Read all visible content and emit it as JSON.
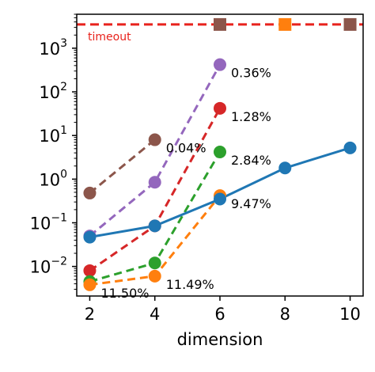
{
  "chart_data": {
    "type": "line",
    "xlabel": "dimension",
    "ylabel": "",
    "x_ticks": [
      2,
      4,
      6,
      8,
      10
    ],
    "xlim": [
      1.6,
      10.4
    ],
    "yscale": "log",
    "ylim": [
      0.0021,
      6000
    ],
    "y_ticks": [
      {
        "value": 0.01,
        "base": "10",
        "exp": "−2"
      },
      {
        "value": 0.1,
        "base": "10",
        "exp": "−1"
      },
      {
        "value": 1,
        "base": "10",
        "exp": "0"
      },
      {
        "value": 10,
        "base": "10",
        "exp": "1"
      },
      {
        "value": 100,
        "base": "10",
        "exp": "2"
      },
      {
        "value": 1000,
        "base": "10",
        "exp": "3"
      }
    ],
    "timeout": {
      "value": 3500,
      "label": "timeout",
      "color": "#e8221c"
    },
    "series": [
      {
        "color": "#8c564b",
        "dashed": true,
        "points": [
          {
            "x": 2,
            "y": 0.48
          },
          {
            "x": 4,
            "y": 8.0
          }
        ],
        "label": {
          "text": "0.04%",
          "x": 4,
          "y": 8.0
        }
      },
      {
        "color": "#9467bd",
        "dashed": true,
        "points": [
          {
            "x": 2,
            "y": 0.05
          },
          {
            "x": 4,
            "y": 0.85
          },
          {
            "x": 6,
            "y": 420
          }
        ],
        "label": {
          "text": "0.36%",
          "x": 6,
          "y": 420
        }
      },
      {
        "color": "#d62728",
        "dashed": true,
        "points": [
          {
            "x": 2,
            "y": 0.008
          },
          {
            "x": 4,
            "y": 0.085
          },
          {
            "x": 6,
            "y": 42
          }
        ],
        "label": {
          "text": "1.28%",
          "x": 6,
          "y": 42
        }
      },
      {
        "color": "#2ca02c",
        "dashed": true,
        "points": [
          {
            "x": 2,
            "y": 0.0045
          },
          {
            "x": 4,
            "y": 0.012
          },
          {
            "x": 6,
            "y": 4.2
          }
        ],
        "label": {
          "text": "2.84%",
          "x": 6,
          "y": 4.2
        }
      },
      {
        "color": "#ff7f0e",
        "dashed": true,
        "points": [
          {
            "x": 2,
            "y": 0.0038
          },
          {
            "x": 4,
            "y": 0.006
          },
          {
            "x": 6,
            "y": 0.42
          }
        ],
        "label": {
          "text": "9.47%",
          "x": 6,
          "y": 0.42
        }
      },
      {
        "color": "#1f77b4",
        "dashed": false,
        "points": [
          {
            "x": 2,
            "y": 0.047
          },
          {
            "x": 4,
            "y": 0.085
          },
          {
            "x": 6,
            "y": 0.35
          },
          {
            "x": 8,
            "y": 1.8
          },
          {
            "x": 10,
            "y": 5.2
          }
        ]
      }
    ],
    "extra_labels": [
      {
        "text": "11.50%",
        "x": 2,
        "y": 0.0038
      },
      {
        "text": "11.49%",
        "x": 4,
        "y": 0.006
      }
    ],
    "timeout_markers": [
      {
        "x": 6,
        "color": "#8c564b"
      },
      {
        "x": 8,
        "color": "#ff7f0e"
      },
      {
        "x": 10,
        "color": "#8c564b"
      }
    ]
  }
}
